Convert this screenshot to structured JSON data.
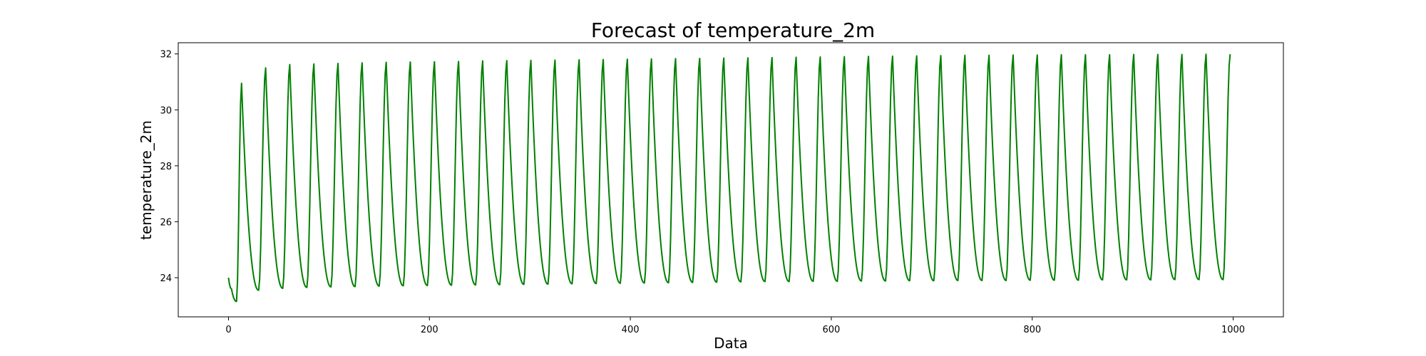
{
  "chart_data": {
    "type": "line",
    "title": "Forecast of temperature_2m",
    "xlabel": "Data",
    "ylabel": "temperature_2m",
    "xlim": [
      -50,
      1050
    ],
    "ylim": [
      22.6,
      32.4
    ],
    "xticks": [
      0,
      200,
      400,
      600,
      800,
      1000
    ],
    "yticks": [
      24,
      26,
      28,
      30,
      32
    ],
    "grid": false,
    "legend": "none",
    "series": [
      {
        "color": "#008000",
        "cycle_length": 24,
        "x": [
          0,
          3,
          8,
          13,
          30,
          37,
          54,
          61,
          78,
          85,
          102,
          109,
          126,
          133,
          150,
          157,
          174,
          181,
          198,
          205,
          222,
          229,
          246,
          253,
          270,
          277,
          294,
          301,
          318,
          325,
          342,
          349,
          366,
          373,
          390,
          397,
          414,
          421,
          438,
          445,
          462,
          469,
          486,
          493,
          510,
          517,
          534,
          541,
          558,
          565,
          582,
          589,
          606,
          613,
          630,
          637,
          654,
          661,
          678,
          685,
          702,
          709,
          726,
          733,
          750,
          757,
          774,
          781,
          798,
          805,
          822,
          829,
          846,
          853,
          870,
          877,
          894,
          901,
          918,
          925,
          942,
          949,
          966,
          973,
          990,
          997
        ],
        "y": [
          24.0,
          23.6,
          23.15,
          30.95,
          23.55,
          31.5,
          23.62,
          31.62,
          23.65,
          31.64,
          23.67,
          31.66,
          23.68,
          31.68,
          23.7,
          31.7,
          23.71,
          31.71,
          23.72,
          31.72,
          23.73,
          31.73,
          23.74,
          31.75,
          23.75,
          31.76,
          23.76,
          31.77,
          23.77,
          31.78,
          23.78,
          31.79,
          23.79,
          31.8,
          23.8,
          31.81,
          23.81,
          31.82,
          23.82,
          31.83,
          23.83,
          31.84,
          23.84,
          31.85,
          23.85,
          31.86,
          23.86,
          31.87,
          23.86,
          31.88,
          23.87,
          31.89,
          23.87,
          31.9,
          23.88,
          31.91,
          23.88,
          31.92,
          23.89,
          31.93,
          23.89,
          31.94,
          23.9,
          31.95,
          23.9,
          31.95,
          23.9,
          31.96,
          23.91,
          31.96,
          23.91,
          31.97,
          23.91,
          31.97,
          23.92,
          31.97,
          23.92,
          31.98,
          23.92,
          31.98,
          23.93,
          31.98,
          23.93,
          31.99,
          23.93,
          31.99
        ]
      }
    ]
  }
}
